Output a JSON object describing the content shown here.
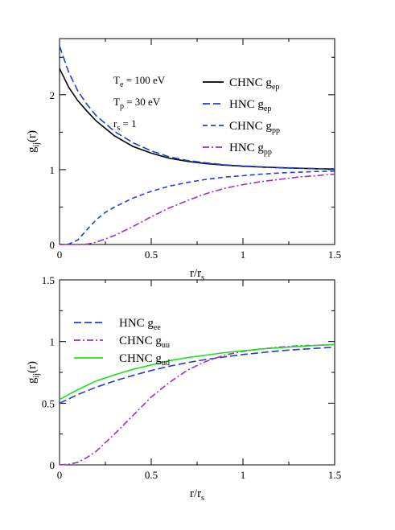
{
  "chart_data": [
    {
      "type": "line",
      "xlabel": "r/r",
      "xlabel_sub": "s",
      "ylabel": "g",
      "ylabel_sub": "ij",
      "ylabel_tail": "(r)",
      "xlim": [
        0,
        1.5
      ],
      "ylim": [
        0,
        2.75
      ],
      "x_ticks": [
        "0",
        "0.5",
        "1",
        "1.5"
      ],
      "y_ticks": [
        "0",
        "1",
        "2"
      ],
      "annotations": [
        {
          "main": "T",
          "sub": "e",
          "tail": " = 100 eV"
        },
        {
          "main": "T",
          "sub": "p",
          "tail": " = 30 eV"
        },
        {
          "main": "r",
          "sub": "s",
          "tail": " = 1"
        }
      ],
      "series": [
        {
          "name": "CHNC",
          "sub": "ep",
          "color": "#000000",
          "dash": "solid",
          "x": [
            0,
            0.05,
            0.1,
            0.15,
            0.2,
            0.3,
            0.4,
            0.5,
            0.6,
            0.7,
            0.8,
            0.9,
            1.0,
            1.1,
            1.2,
            1.3,
            1.4,
            1.5
          ],
          "y": [
            2.35,
            2.1,
            1.92,
            1.78,
            1.65,
            1.45,
            1.31,
            1.22,
            1.15,
            1.11,
            1.08,
            1.06,
            1.045,
            1.035,
            1.025,
            1.018,
            1.012,
            1.008
          ]
        },
        {
          "name": "HNC",
          "sub": "ep",
          "color": "#1f3fd6",
          "dash": "long",
          "x": [
            0,
            0.05,
            0.1,
            0.15,
            0.2,
            0.3,
            0.4,
            0.5,
            0.6,
            0.7,
            0.8,
            0.9,
            1.0,
            1.1,
            1.2,
            1.3,
            1.4,
            1.5
          ],
          "y": [
            2.65,
            2.3,
            2.05,
            1.87,
            1.72,
            1.51,
            1.36,
            1.25,
            1.17,
            1.12,
            1.09,
            1.065,
            1.05,
            1.038,
            1.028,
            1.02,
            1.014,
            1.01
          ]
        },
        {
          "name": "CHNC",
          "sub": "pp",
          "color": "#1f3fd6",
          "dash": "medium",
          "x": [
            0,
            0.05,
            0.1,
            0.15,
            0.2,
            0.25,
            0.3,
            0.4,
            0.5,
            0.6,
            0.7,
            0.8,
            0.9,
            1.0,
            1.1,
            1.2,
            1.3,
            1.4,
            1.5
          ],
          "y": [
            0,
            0.005,
            0.06,
            0.2,
            0.33,
            0.43,
            0.5,
            0.62,
            0.71,
            0.78,
            0.83,
            0.87,
            0.9,
            0.92,
            0.94,
            0.955,
            0.965,
            0.975,
            0.98
          ]
        },
        {
          "name": "HNC",
          "sub": "pp",
          "color": "#9b2fc0",
          "dash": "dashdot",
          "x": [
            0,
            0.1,
            0.15,
            0.2,
            0.3,
            0.4,
            0.5,
            0.6,
            0.7,
            0.8,
            0.9,
            1.0,
            1.1,
            1.2,
            1.3,
            1.4,
            1.5
          ],
          "y": [
            0,
            0,
            0.005,
            0.03,
            0.12,
            0.24,
            0.37,
            0.49,
            0.59,
            0.68,
            0.75,
            0.8,
            0.84,
            0.87,
            0.9,
            0.92,
            0.94
          ]
        }
      ]
    },
    {
      "type": "line",
      "xlabel": "r/r",
      "xlabel_sub": "s",
      "ylabel": "g",
      "ylabel_sub": "ij",
      "ylabel_tail": "(r)",
      "xlim": [
        0,
        1.5
      ],
      "ylim": [
        0,
        1.5
      ],
      "x_ticks": [
        "0",
        "0.5",
        "1",
        "1.5"
      ],
      "y_ticks": [
        "0",
        "0.5",
        "1",
        "1.5"
      ],
      "series": [
        {
          "name": "HNC",
          "sub": "ee",
          "color": "#1f3fd6",
          "dash": "long",
          "x": [
            0,
            0.1,
            0.2,
            0.3,
            0.4,
            0.5,
            0.6,
            0.7,
            0.8,
            0.9,
            1.0,
            1.1,
            1.2,
            1.3,
            1.4,
            1.5
          ],
          "y": [
            0.5,
            0.57,
            0.63,
            0.68,
            0.725,
            0.765,
            0.8,
            0.83,
            0.855,
            0.875,
            0.895,
            0.91,
            0.925,
            0.935,
            0.945,
            0.955
          ]
        },
        {
          "name": "CHNC",
          "sub": "uu",
          "color": "#9b2fc0",
          "dash": "dashdot",
          "x": [
            0,
            0.05,
            0.1,
            0.15,
            0.2,
            0.3,
            0.4,
            0.5,
            0.6,
            0.7,
            0.8,
            0.9,
            1.0,
            1.1,
            1.2,
            1.3,
            1.4,
            1.5
          ],
          "y": [
            0,
            0.005,
            0.02,
            0.06,
            0.11,
            0.25,
            0.4,
            0.55,
            0.67,
            0.77,
            0.84,
            0.89,
            0.92,
            0.94,
            0.955,
            0.965,
            0.97,
            0.975
          ]
        },
        {
          "name": "CHNC",
          "sub": "ud",
          "color": "#22dd22",
          "dash": "solid",
          "x": [
            0,
            0.1,
            0.2,
            0.3,
            0.4,
            0.5,
            0.6,
            0.7,
            0.8,
            0.9,
            1.0,
            1.1,
            1.2,
            1.3,
            1.4,
            1.5
          ],
          "y": [
            0.53,
            0.61,
            0.68,
            0.73,
            0.775,
            0.81,
            0.845,
            0.87,
            0.89,
            0.91,
            0.925,
            0.94,
            0.95,
            0.96,
            0.968,
            0.975
          ]
        }
      ]
    }
  ]
}
